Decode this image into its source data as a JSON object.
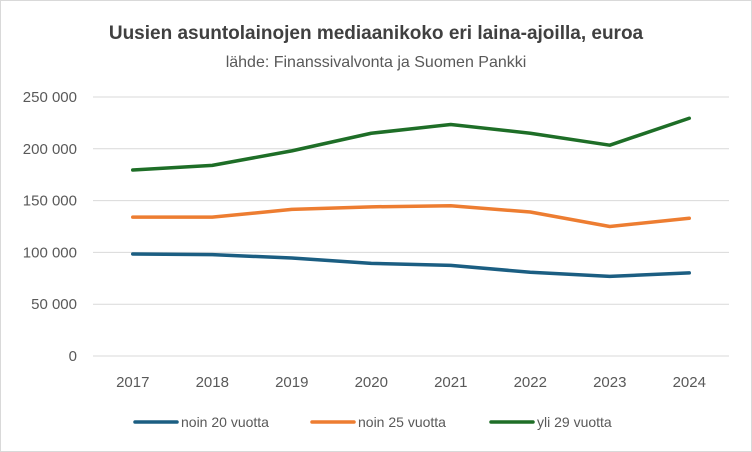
{
  "chart_data": {
    "type": "line",
    "title": "Uusien asuntolainojen mediaanikoko eri laina-ajoilla, euroa",
    "subtitle": "lähde: Finanssivalvonta ja Suomen Pankki",
    "categories": [
      "2017",
      "2018",
      "2019",
      "2020",
      "2021",
      "2022",
      "2023",
      "2024"
    ],
    "ylim": [
      0,
      250000
    ],
    "yticks": [
      0,
      50000,
      100000,
      150000,
      200000,
      250000
    ],
    "ytick_labels": [
      "0",
      "50 000",
      "100 000",
      "150 000",
      "200 000",
      "250 000"
    ],
    "grid": true,
    "legend": "bottom",
    "series": [
      {
        "name": "noin 20 vuotta",
        "color": "#1b5e82",
        "values": [
          98500,
          97800,
          94600,
          89400,
          87500,
          80800,
          76900,
          80200
        ]
      },
      {
        "name": "noin 25 vuotta",
        "color": "#ed7d31",
        "values": [
          134000,
          134000,
          141500,
          144000,
          145000,
          139000,
          125000,
          133000
        ]
      },
      {
        "name": "yli 29 vuotta",
        "color": "#1e6e27",
        "values": [
          179500,
          184000,
          198000,
          215000,
          223500,
          215000,
          203500,
          229500
        ]
      }
    ]
  }
}
